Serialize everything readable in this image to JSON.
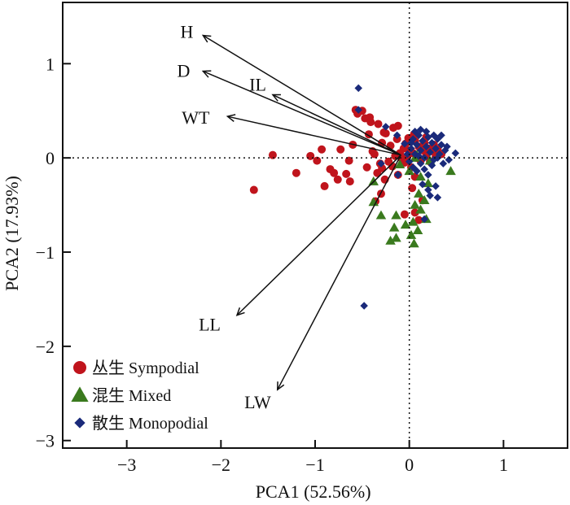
{
  "chart_data": {
    "type": "scatter",
    "title": "",
    "xlabel": "PCA1 (52.56%)",
    "ylabel": "PCA2 (17.93%)",
    "xlim": [
      -3.68,
      1.68
    ],
    "ylim": [
      -3.08,
      1.65
    ],
    "xticks": [
      -3,
      -2,
      -1,
      0,
      1
    ],
    "yticks": [
      -3,
      -2,
      -1,
      0,
      1
    ],
    "xtick_labels": [
      "−3",
      "−2",
      "−1",
      "0",
      "1"
    ],
    "ytick_labels": [
      "−3",
      "−2",
      "−1",
      "0",
      "1"
    ],
    "grid": false,
    "reference_lines": {
      "x": 0,
      "y": 0,
      "style": "dotted"
    },
    "legend_position": "bottom-left",
    "colors": {
      "sympodial": "#c0141c",
      "mixed": "#3a7a1e",
      "monopodial": "#1a2a7a",
      "axis": "#111111"
    },
    "loadings": {
      "origin": [
        -0.09,
        0.03
      ],
      "vectors": [
        {
          "name": "H",
          "x": -2.19,
          "y": 1.3
        },
        {
          "name": "D",
          "x": -2.19,
          "y": 0.92
        },
        {
          "name": "IL",
          "x": -1.45,
          "y": 0.67
        },
        {
          "name": "WT",
          "x": -1.93,
          "y": 0.44
        },
        {
          "name": "LL",
          "x": -1.83,
          "y": -1.67
        },
        {
          "name": "LW",
          "x": -1.4,
          "y": -2.46
        }
      ]
    },
    "series": [
      {
        "name": "丛生 Sympodial",
        "marker": "circle",
        "color": "#c0141c",
        "points": [
          [
            -1.65,
            -0.34
          ],
          [
            -1.45,
            0.03
          ],
          [
            -1.2,
            -0.16
          ],
          [
            -1.05,
            0.02
          ],
          [
            -0.98,
            -0.03
          ],
          [
            -0.93,
            0.09
          ],
          [
            -0.9,
            -0.3
          ],
          [
            -0.84,
            -0.12
          ],
          [
            -0.8,
            -0.16
          ],
          [
            -0.76,
            -0.23
          ],
          [
            -0.73,
            0.09
          ],
          [
            -0.67,
            -0.17
          ],
          [
            -0.64,
            -0.03
          ],
          [
            -0.63,
            -0.25
          ],
          [
            -0.6,
            0.14
          ],
          [
            -0.55,
            0.47
          ],
          [
            -0.47,
            0.42
          ],
          [
            -0.5,
            0.5
          ],
          [
            -0.45,
            -0.1
          ],
          [
            -0.43,
            0.25
          ],
          [
            -0.42,
            0.43
          ],
          [
            -0.41,
            0.38
          ],
          [
            -0.39,
            0.07
          ],
          [
            -0.37,
            0.04
          ],
          [
            -0.34,
            -0.16
          ],
          [
            -0.33,
            0.36
          ],
          [
            -0.31,
            -0.06
          ],
          [
            -0.29,
            -0.11
          ],
          [
            -0.29,
            0.16
          ],
          [
            -0.27,
            0.27
          ],
          [
            -0.26,
            -0.23
          ],
          [
            -0.25,
            0.26
          ],
          [
            -0.22,
            -0.04
          ],
          [
            -0.2,
            0.13
          ],
          [
            -0.18,
            -0.09
          ],
          [
            -0.17,
            0.32
          ],
          [
            -0.15,
            0.02
          ],
          [
            -0.13,
            0.2
          ],
          [
            -0.12,
            -0.18
          ],
          [
            -0.1,
            0.05
          ],
          [
            -0.08,
            -0.01
          ],
          [
            -0.06,
            0.1
          ],
          [
            -0.05,
            -0.05
          ],
          [
            -0.04,
            0.15
          ],
          [
            -0.02,
            0.02
          ],
          [
            0.0,
            0.08
          ],
          [
            0.02,
            -0.1
          ],
          [
            0.04,
            0.05
          ],
          [
            0.06,
            0.18
          ],
          [
            0.08,
            0.0
          ],
          [
            0.1,
            0.12
          ],
          [
            0.12,
            -0.03
          ],
          [
            0.14,
            0.08
          ],
          [
            0.16,
            0.16
          ],
          [
            0.18,
            0.02
          ],
          [
            0.2,
            0.1
          ],
          [
            0.22,
            -0.04
          ],
          [
            0.24,
            0.07
          ],
          [
            0.26,
            0.14
          ],
          [
            0.28,
            0.01
          ],
          [
            0.3,
            0.09
          ],
          [
            0.34,
            0.04
          ],
          [
            0.03,
            -0.32
          ],
          [
            0.06,
            -0.58
          ],
          [
            0.1,
            -0.66
          ],
          [
            -0.05,
            -0.6
          ],
          [
            0.14,
            -0.45
          ],
          [
            0.06,
            -0.2
          ],
          [
            -0.12,
            0.34
          ],
          [
            -0.3,
            -0.38
          ],
          [
            -0.57,
            0.51
          ],
          [
            -0.36,
            -0.46
          ],
          [
            0.18,
            0.22
          ],
          [
            0.05,
            0.25
          ],
          [
            -0.01,
            0.21
          ]
        ]
      },
      {
        "name": "混生 Mixed",
        "marker": "triangle",
        "color": "#3a7a1e",
        "points": [
          [
            -0.38,
            -0.47
          ],
          [
            -0.38,
            -0.25
          ],
          [
            -0.3,
            -0.61
          ],
          [
            -0.1,
            -0.07
          ],
          [
            0.0,
            -0.14
          ],
          [
            0.06,
            0.0
          ],
          [
            0.12,
            -0.2
          ],
          [
            0.2,
            -0.27
          ],
          [
            0.44,
            -0.14
          ],
          [
            0.1,
            -0.38
          ],
          [
            0.16,
            -0.45
          ],
          [
            0.06,
            -0.5
          ],
          [
            0.12,
            -0.55
          ],
          [
            0.04,
            -0.68
          ],
          [
            -0.04,
            -0.71
          ],
          [
            -0.14,
            -0.61
          ],
          [
            -0.16,
            -0.74
          ],
          [
            -0.14,
            -0.85
          ],
          [
            0.02,
            -0.82
          ],
          [
            0.05,
            -0.91
          ],
          [
            -0.2,
            -0.88
          ],
          [
            0.08,
            0.03
          ],
          [
            0.22,
            -0.03
          ],
          [
            0.18,
            -0.65
          ],
          [
            0.09,
            -0.77
          ]
        ]
      },
      {
        "name": "散生 Monopodial",
        "marker": "diamond",
        "color": "#1a2a7a",
        "points": [
          [
            -0.54,
            0.74
          ],
          [
            -0.54,
            0.51
          ],
          [
            -0.25,
            0.33
          ],
          [
            -0.13,
            0.24
          ],
          [
            -0.05,
            0.15
          ],
          [
            0.02,
            0.1
          ],
          [
            0.04,
            0.2
          ],
          [
            0.06,
            0.04
          ],
          [
            0.08,
            0.14
          ],
          [
            0.1,
            0.24
          ],
          [
            0.12,
            0.08
          ],
          [
            0.14,
            0.18
          ],
          [
            0.16,
            0.0
          ],
          [
            0.18,
            0.12
          ],
          [
            0.2,
            0.22
          ],
          [
            0.22,
            0.06
          ],
          [
            0.24,
            0.16
          ],
          [
            0.26,
            -0.02
          ],
          [
            0.28,
            0.1
          ],
          [
            0.3,
            0.2
          ],
          [
            0.32,
            0.04
          ],
          [
            0.34,
            0.14
          ],
          [
            0.36,
            -0.06
          ],
          [
            0.38,
            0.08
          ],
          [
            0.49,
            0.05
          ],
          [
            0.0,
            -0.04
          ],
          [
            0.04,
            -0.1
          ],
          [
            0.08,
            -0.14
          ],
          [
            0.12,
            -0.06
          ],
          [
            0.16,
            -0.12
          ],
          [
            0.2,
            -0.18
          ],
          [
            0.24,
            -0.08
          ],
          [
            0.14,
            -0.28
          ],
          [
            0.2,
            -0.34
          ],
          [
            0.22,
            -0.4
          ],
          [
            0.28,
            -0.3
          ],
          [
            0.3,
            -0.42
          ],
          [
            -0.3,
            -0.06
          ],
          [
            -0.12,
            -0.18
          ],
          [
            0.16,
            -0.65
          ],
          [
            -0.48,
            -1.57
          ],
          [
            0.06,
            0.28
          ],
          [
            0.1,
            0.02
          ],
          [
            0.18,
            0.28
          ],
          [
            0.26,
            0.24
          ],
          [
            0.02,
            0.16
          ],
          [
            -0.02,
            0.04
          ],
          [
            0.3,
            0.0
          ],
          [
            0.34,
            0.24
          ],
          [
            0.4,
            0.12
          ],
          [
            0.12,
            0.3
          ],
          [
            0.42,
            -0.02
          ]
        ]
      }
    ]
  }
}
